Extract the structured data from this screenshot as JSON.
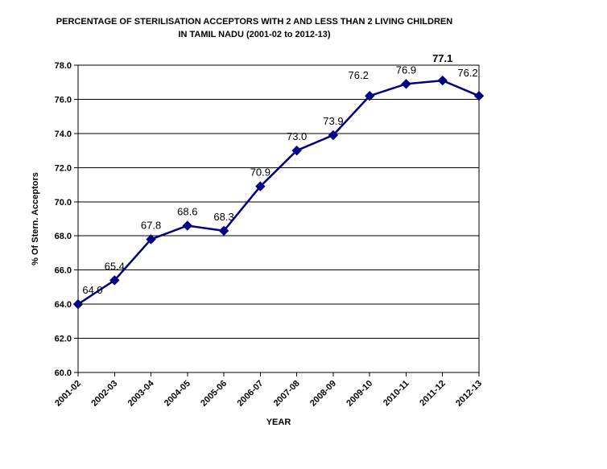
{
  "chart_data": {
    "type": "line",
    "title": "PERCENTAGE OF STERILISATION ACCEPTORS WITH 2 AND LESS THAN 2 LIVING CHILDREN",
    "subtitle": "IN TAMIL NADU (2001-02 to 2012-13)",
    "xlabel": "YEAR",
    "ylabel": "% Of Stern. Acceptors",
    "categories": [
      "2001-02",
      "2002-03",
      "2003-04",
      "2004-05",
      "2005-06",
      "2006-07",
      "2007-08",
      "2008-09",
      "2009-10",
      "2010-11",
      "2011-12",
      "2012-13"
    ],
    "values": [
      64.0,
      65.4,
      67.8,
      68.6,
      68.3,
      70.9,
      73.0,
      73.9,
      76.2,
      76.9,
      77.1,
      76.2
    ],
    "point_labels": [
      "64.0",
      "65.4",
      "67.8",
      "68.6",
      "68.3",
      "70.9",
      "73.0",
      "73.9",
      "76.2",
      "76.9",
      "77.1",
      "76.2"
    ],
    "emphasized_label_index": 10,
    "ylim": [
      60.0,
      78.0
    ],
    "ytick_step": 2.0,
    "ytick_labels": [
      "60.0",
      "62.0",
      "64.0",
      "66.0",
      "68.0",
      "70.0",
      "72.0",
      "74.0",
      "76.0",
      "78.0"
    ],
    "grid": "horizontal",
    "legend": "none",
    "line_color": "#000080",
    "marker": "diamond",
    "marker_color": "#000080",
    "text_color": "#000000",
    "background_color": "#ffffff"
  }
}
